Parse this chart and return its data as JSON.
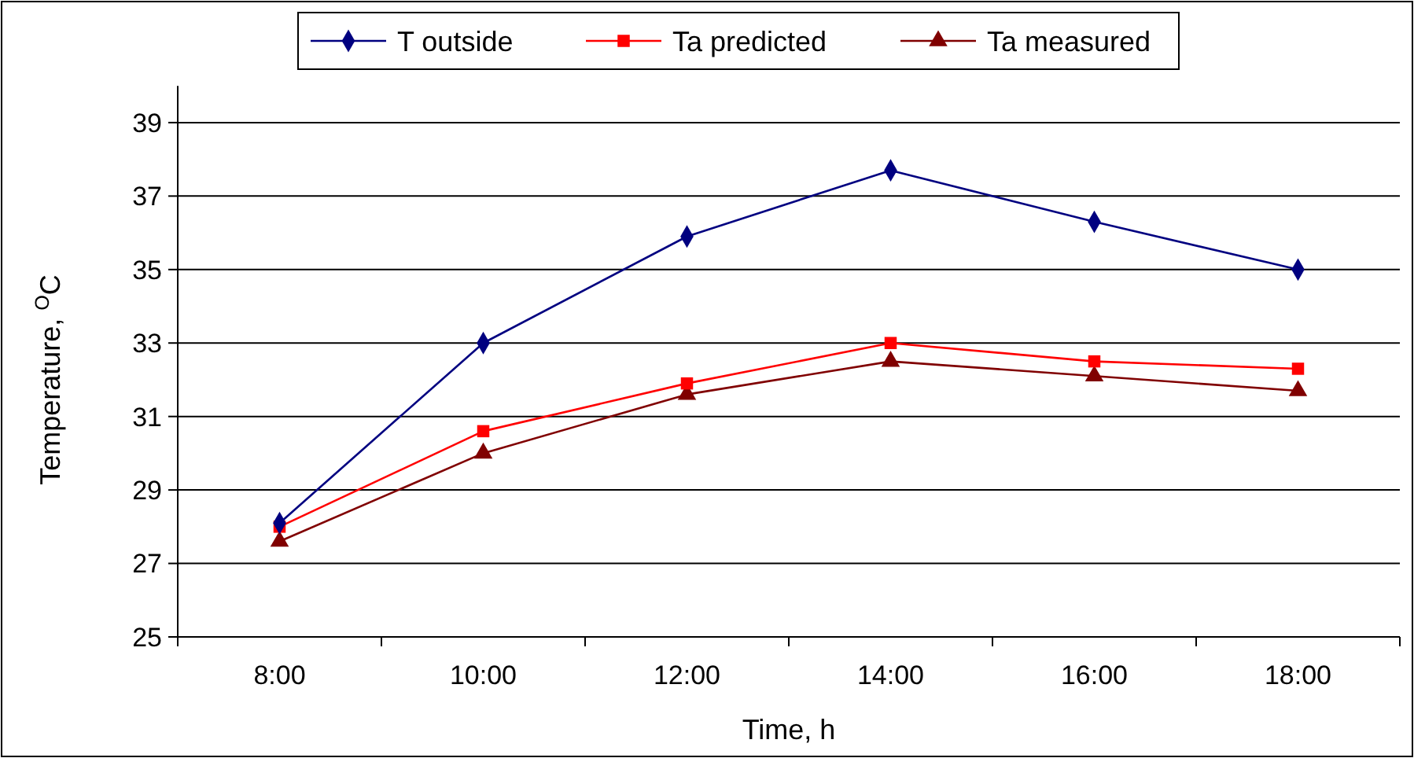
{
  "chart_data": {
    "type": "line",
    "xlabel": "Time, h",
    "ylabel": "Temperature, $^{O}$C",
    "categories": [
      "8:00",
      "10:00",
      "12:00",
      "14:00",
      "16:00",
      "18:00"
    ],
    "ylim": [
      25,
      40
    ],
    "yticks": [
      25,
      27,
      29,
      31,
      33,
      35,
      37,
      39
    ],
    "grid": "y",
    "legend": "top",
    "series": [
      {
        "name": "T outside",
        "color": "#000080",
        "marker": "diamond",
        "values": [
          28.1,
          33.0,
          35.9,
          37.7,
          36.3,
          35.0
        ]
      },
      {
        "name": "Ta predicted",
        "color": "#ff0000",
        "marker": "square",
        "values": [
          28.0,
          30.6,
          31.9,
          33.0,
          32.5,
          32.3
        ]
      },
      {
        "name": "Ta measured",
        "color": "#800000",
        "marker": "triangle",
        "values": [
          27.6,
          30.0,
          31.6,
          32.5,
          32.1,
          31.7
        ]
      }
    ]
  }
}
